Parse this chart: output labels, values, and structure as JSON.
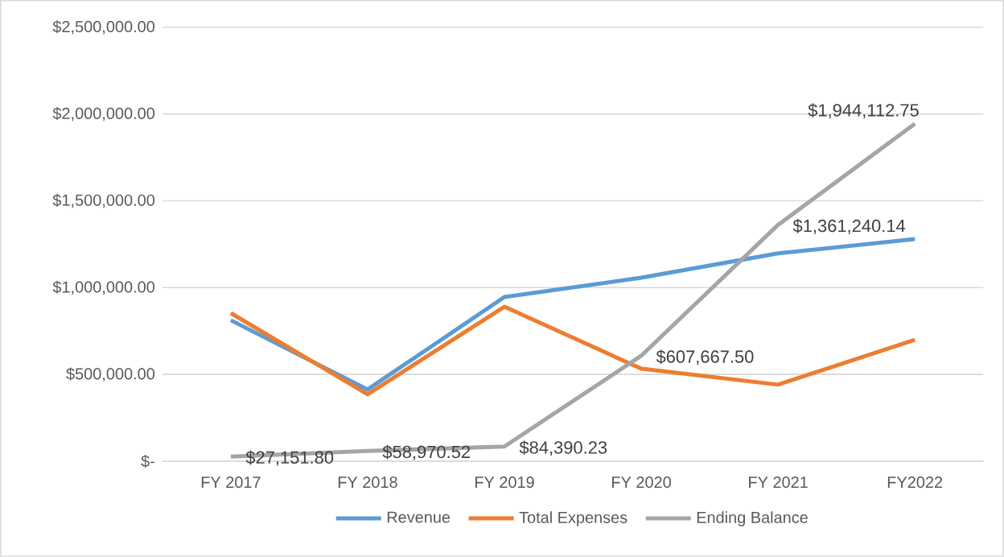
{
  "chart_data": {
    "type": "line",
    "categories": [
      "FY 2017",
      "FY 2018",
      "FY 2019",
      "FY 2020",
      "FY 2021",
      "FY2022"
    ],
    "series": [
      {
        "name": "Revenue",
        "color": "#5b9bd5",
        "values": [
          812000,
          413000,
          946000,
          1057000,
          1197000,
          1280000
        ]
      },
      {
        "name": "Total Expenses",
        "color": "#ed7d31",
        "values": [
          853000,
          385000,
          890000,
          533000,
          441000,
          700000
        ]
      },
      {
        "name": "Ending Balance",
        "color": "#a5a5a5",
        "values": [
          27151.8,
          58970.52,
          84390.23,
          607667.5,
          1361240.14,
          1944112.75
        ],
        "value_labels": [
          "$27,151.80",
          "$58,970.52",
          "$84,390.23",
          "$607,667.50",
          "$1,361,240.14",
          "$1,944,112.75"
        ]
      }
    ],
    "ylim": [
      0,
      2500000
    ],
    "yticks": [
      {
        "value": 0,
        "label": "$-"
      },
      {
        "value": 500000,
        "label": "$500,000.00"
      },
      {
        "value": 1000000,
        "label": "$1,000,000.00"
      },
      {
        "value": 1500000,
        "label": "$1,500,000.00"
      },
      {
        "value": 2000000,
        "label": "$2,000,000.00"
      },
      {
        "value": 2500000,
        "label": "$2,500,000.00"
      }
    ],
    "grid": "y",
    "legend": "bottom",
    "marker": "none",
    "line_style": "solid"
  }
}
